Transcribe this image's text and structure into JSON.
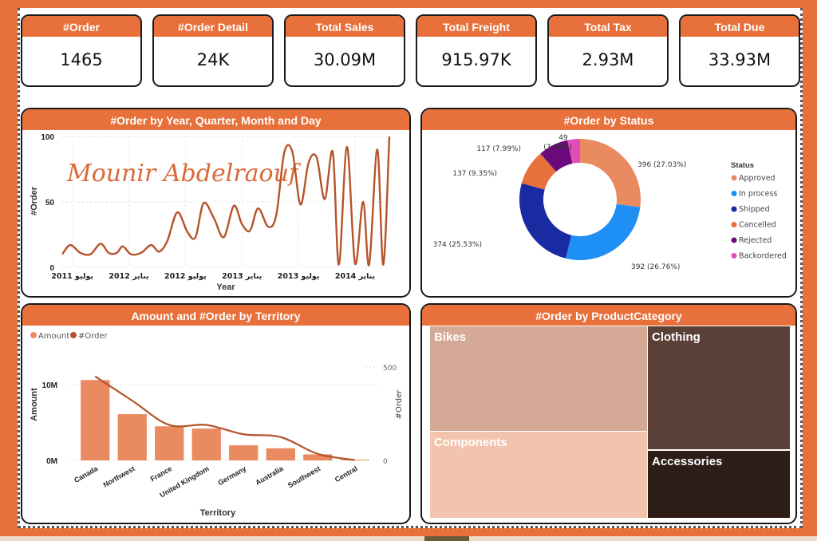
{
  "kpis": [
    {
      "label": "#Order",
      "value": "1465"
    },
    {
      "label": "#Order Detail",
      "value": "24K"
    },
    {
      "label": "Total Sales",
      "value": "30.09M"
    },
    {
      "label": "Total Freight",
      "value": "915.97K"
    },
    {
      "label": "Total Tax",
      "value": "2.93M"
    },
    {
      "label": "Total Due",
      "value": "33.93M"
    }
  ],
  "colors": {
    "accent": "#e8703a",
    "line": "#b5532a",
    "bar": "#ea8a61"
  },
  "chart_data": [
    {
      "id": "orders_by_date",
      "type": "line",
      "title": "#Order by Year, Quarter, Month and Day",
      "xlabel": "Year",
      "ylabel": "#Order",
      "ylim": [
        0,
        100
      ],
      "yticks": [
        "0",
        "50",
        "100"
      ],
      "xticks": [
        "يوليو 2011",
        "يناير 2012",
        "يوليو 2012",
        "يناير 2013",
        "يوليو 2013",
        "يناير 2014"
      ],
      "watermark": "Mounir Abdelraouf",
      "grid": true,
      "x": [
        0,
        0.4,
        0.9,
        1.4,
        1.9,
        2.3,
        2.7,
        3.0,
        3.4,
        3.9,
        4.4,
        4.8,
        5.2,
        5.7,
        6.2,
        6.6,
        7.0,
        7.5,
        8.0,
        8.5,
        8.9,
        9.3,
        9.7,
        10.2,
        10.6,
        11.0,
        11.4,
        11.8,
        12.2,
        12.6,
        13.0,
        13.4,
        13.7,
        14.1,
        14.5,
        14.9,
        15.2,
        15.6,
        15.9,
        16.2,
        16.5,
        16.8,
        17.0,
        17.3,
        17.5,
        17.8,
        18.0
      ],
      "values": [
        10,
        17,
        11,
        10,
        18,
        11,
        11,
        16,
        10,
        11,
        17,
        12,
        20,
        42,
        27,
        23,
        49,
        38,
        23,
        47,
        33,
        28,
        45,
        31,
        40,
        88,
        88,
        48,
        80,
        84,
        52,
        88,
        2,
        92,
        3,
        50,
        2,
        90,
        2,
        100,
        2,
        2,
        2,
        2,
        2,
        2,
        2
      ]
    },
    {
      "id": "orders_by_status",
      "type": "pie",
      "title": "#Order by Status",
      "legend_title": "Status",
      "legend_position": "right",
      "slices": [
        {
          "label": "Approved",
          "value": 396,
          "pct": "27.03%",
          "color": "#ea8a61"
        },
        {
          "label": "In process",
          "value": 392,
          "pct": "26.76%",
          "color": "#1e90f5"
        },
        {
          "label": "Shipped",
          "value": 374,
          "pct": "25.53%",
          "color": "#1a2aa0"
        },
        {
          "label": "Cancelled",
          "value": 137,
          "pct": "9.35%",
          "color": "#e8703a"
        },
        {
          "label": "Rejected",
          "value": 117,
          "pct": "7.99%",
          "color": "#6b0a7a"
        },
        {
          "label": "Backordered",
          "value": 49,
          "pct": "3.34%",
          "color": "#e04fb8"
        }
      ]
    },
    {
      "id": "amount_orders_by_territory",
      "type": "bar",
      "title": "Amount and #Order by Territory",
      "xlabel": "Territory",
      "ylabel": "Amount",
      "y2label": "#Order",
      "legend": [
        "Amount",
        "#Order"
      ],
      "legend_position": "top-left",
      "yticks": [
        "0M",
        "10M"
      ],
      "y2ticks": [
        "0",
        "500"
      ],
      "ylim": [
        0,
        10000000
      ],
      "y2lim": [
        0,
        500
      ],
      "categories": [
        "Canada",
        "Northwest",
        "France",
        "United Kingdom",
        "Germany",
        "Australia",
        "Southwest",
        "Central"
      ],
      "series": [
        {
          "name": "Amount",
          "values": [
            10600000,
            6100000,
            4500000,
            4200000,
            2000000,
            1600000,
            800000,
            100000
          ]
        },
        {
          "name": "#Order",
          "values": [
            450,
            320,
            190,
            190,
            140,
            125,
            35,
            2
          ]
        }
      ]
    },
    {
      "id": "orders_by_category",
      "type": "heatmap",
      "title": "#Order by ProductCategory",
      "cells": [
        {
          "label": "Bikes",
          "color": "#d4a995"
        },
        {
          "label": "Components",
          "color": "#f2c4ad"
        },
        {
          "label": "Clothing",
          "color": "#5b4038"
        },
        {
          "label": "Accessories",
          "color": "#2e1c17"
        }
      ]
    }
  ]
}
